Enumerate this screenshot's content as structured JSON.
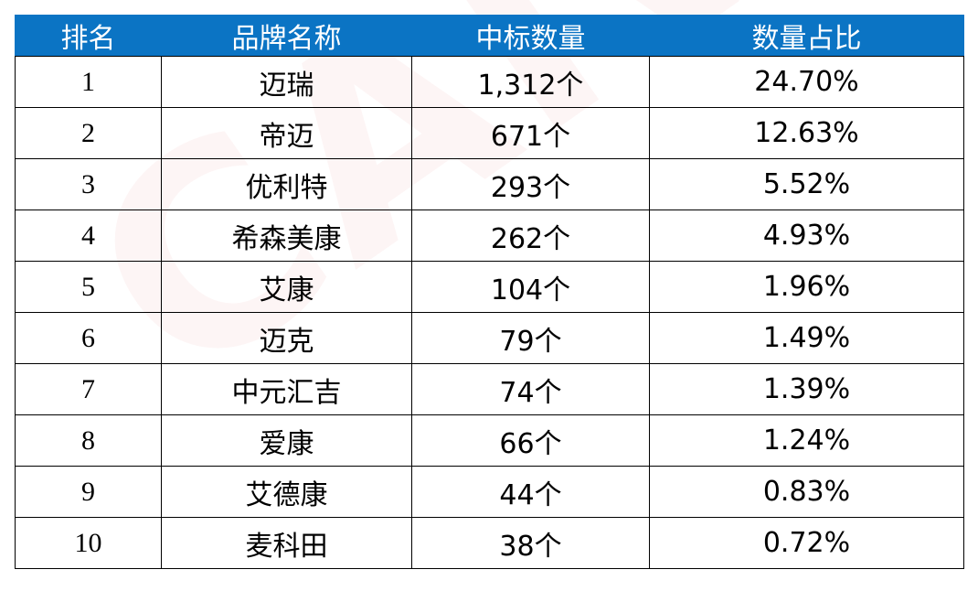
{
  "table": {
    "header": [
      "排名",
      "品牌名称",
      "中标数量",
      "数量占比"
    ],
    "rows": [
      [
        "1",
        "迈瑞",
        "1,312个",
        "24.70%"
      ],
      [
        "2",
        "帝迈",
        "671个",
        "12.63%"
      ],
      [
        "3",
        "优利特",
        "293个",
        "5.52%"
      ],
      [
        "4",
        "希森美康",
        "262个",
        "4.93%"
      ],
      [
        "5",
        "艾康",
        "104个",
        "1.96%"
      ],
      [
        "6",
        "迈克",
        "79个",
        "1.49%"
      ],
      [
        "7",
        "中元汇吉",
        "74个",
        "1.39%"
      ],
      [
        "8",
        "爱康",
        "66个",
        "1.24%"
      ],
      [
        "9",
        "艾德康",
        "44个",
        "0.83%"
      ],
      [
        "10",
        "麦科田",
        "38个",
        "0.72%"
      ]
    ]
  },
  "watermark": "CAIVD"
}
